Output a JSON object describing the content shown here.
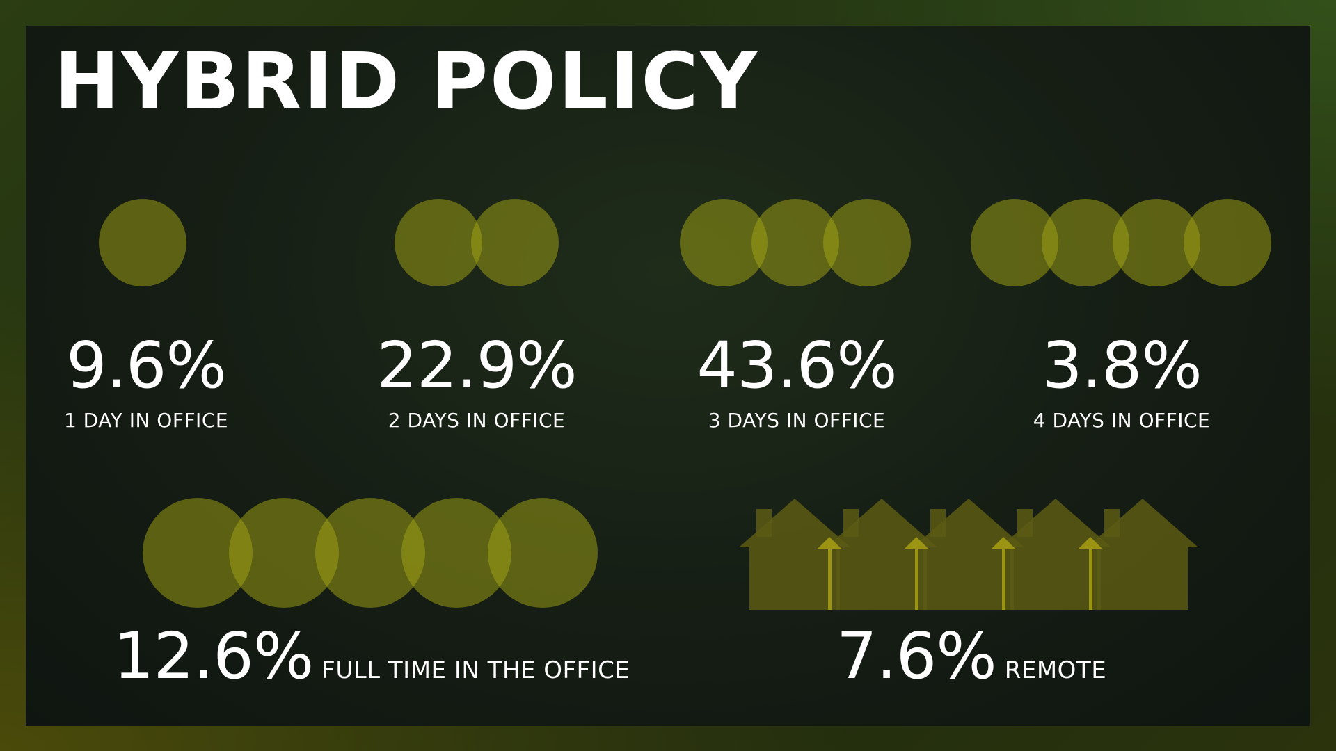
{
  "title": "HYBRID POLICY",
  "colors": {
    "circle_fill": "#a3a513",
    "circle_overlap": "#e8d40a",
    "house_fill": "#5c5a14",
    "arrow": "#9a9412"
  },
  "stats": [
    {
      "value": "9.6%",
      "label": "1 DAY IN OFFICE",
      "circles": 1
    },
    {
      "value": "22.9%",
      "label": "2 DAYS IN OFFICE",
      "circles": 2
    },
    {
      "value": "43.6%",
      "label": "3 DAYS IN OFFICE",
      "circles": 3
    },
    {
      "value": "3.8%",
      "label": "4 DAYS IN OFFICE",
      "circles": 4
    }
  ],
  "full_time": {
    "value": "12.6%",
    "label": "FULL TIME IN THE OFFICE",
    "circles": 5
  },
  "remote": {
    "value": "7.6%",
    "label": "REMOTE",
    "houses": 5
  }
}
